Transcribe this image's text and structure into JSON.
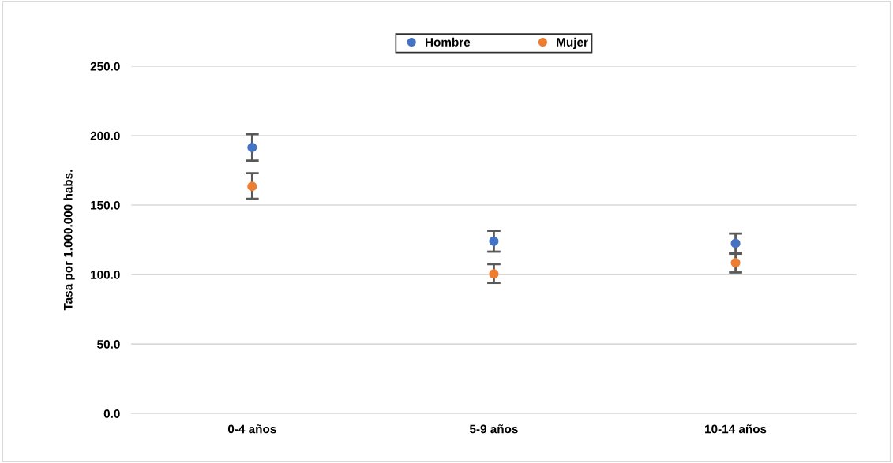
{
  "chart_data": {
    "type": "scatter",
    "ylabel": "Tasa por 1.000.000 habs.",
    "categories": [
      "0-4 años",
      "5-9 años",
      "10-14 años"
    ],
    "series": [
      {
        "name": "Hombre",
        "color": "#4472c4",
        "values": [
          191.5,
          124,
          122.5
        ],
        "errors": [
          [
            182,
            201
          ],
          [
            116.5,
            131.5
          ],
          [
            115,
            129.5
          ]
        ]
      },
      {
        "name": "Mujer",
        "color": "#ed7d31",
        "values": [
          163.5,
          100.5,
          108.5
        ],
        "errors": [
          [
            154.5,
            173
          ],
          [
            94,
            107.5
          ],
          [
            101.5,
            115.5
          ]
        ]
      }
    ],
    "ylim": [
      0,
      250
    ],
    "yticks": [
      {
        "value": 0,
        "label": "0.0"
      },
      {
        "value": 50,
        "label": "50.0"
      },
      {
        "value": 100,
        "label": "100.0"
      },
      {
        "value": 150,
        "label": "150.0"
      },
      {
        "value": 200,
        "label": "200.0"
      },
      {
        "value": 250,
        "label": "250.0"
      }
    ],
    "grid": "y",
    "legend": "top",
    "marker": "circle"
  }
}
